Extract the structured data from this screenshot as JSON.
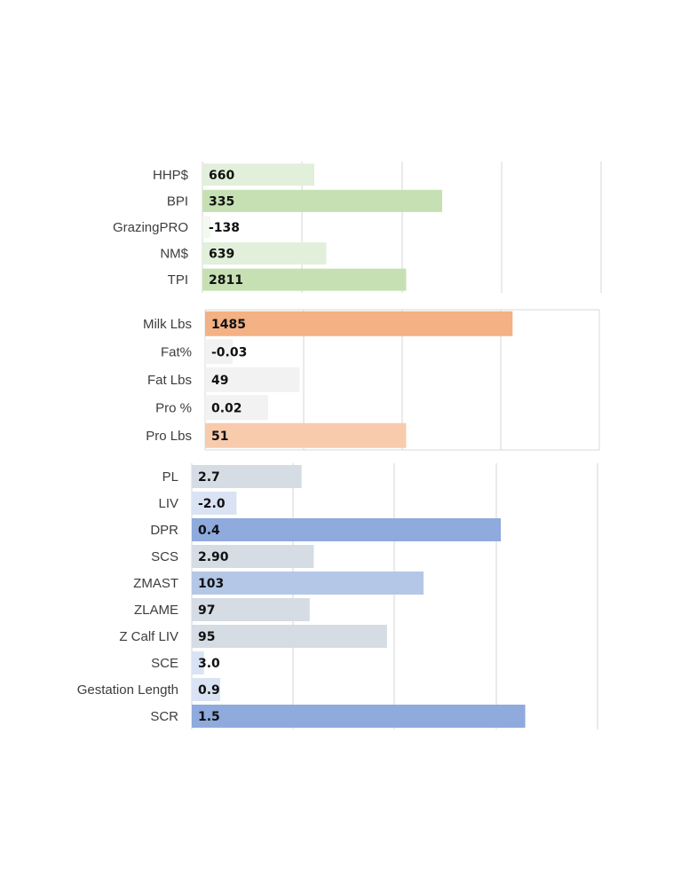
{
  "chart_data": [
    {
      "type": "bar",
      "orientation": "horizontal",
      "categories": [
        "HHP$",
        "BPI",
        "GrazingPRO",
        "NM$",
        "TPI"
      ],
      "values": [
        660,
        335,
        -138,
        639,
        2811
      ],
      "value_labels": [
        "660",
        "335",
        "-138",
        "639",
        "2811"
      ],
      "bar_fill_fraction": [
        0.28,
        0.6,
        0.02,
        0.31,
        0.51
      ],
      "bar_colors": [
        "#e2efda",
        "#c6e0b4",
        "#f2f9ee",
        "#e2efda",
        "#c6e0b4"
      ],
      "grid": true
    },
    {
      "type": "bar",
      "orientation": "horizontal",
      "categories": [
        "Milk Lbs",
        "Fat%",
        "Fat Lbs",
        "Pro %",
        "Pro Lbs"
      ],
      "values": [
        1485,
        -0.03,
        49,
        0.02,
        51
      ],
      "value_labels": [
        "1485",
        "-0.03",
        "49",
        "0.02",
        "51"
      ],
      "bar_fill_fraction": [
        0.78,
        0.07,
        0.24,
        0.16,
        0.51
      ],
      "bar_colors": [
        "#f4b183",
        "#f2f2f2",
        "#f2f2f2",
        "#f2f2f2",
        "#f8cbad"
      ],
      "grid": true
    },
    {
      "type": "bar",
      "orientation": "horizontal",
      "categories": [
        "PL",
        "LIV",
        "DPR",
        "SCS",
        "ZMAST",
        "ZLAME",
        "Z Calf LIV",
        "SCE",
        "Gestation Length",
        "SCR"
      ],
      "values": [
        2.7,
        -2.0,
        0.4,
        2.9,
        103,
        97,
        95,
        3.0,
        0.9,
        1.5
      ],
      "value_labels": [
        "2.7",
        "-2.0",
        "0.4",
        "2.90",
        "103",
        "97",
        "95",
        "3.0",
        "0.9",
        "1.5"
      ],
      "bar_fill_fraction": [
        0.27,
        0.11,
        0.76,
        0.3,
        0.57,
        0.29,
        0.48,
        0.03,
        0.07,
        0.82
      ],
      "bar_colors": [
        "#d6dce4",
        "#dae3f3",
        "#8faadc",
        "#d6dce4",
        "#b4c7e7",
        "#d6dce4",
        "#d6dce4",
        "#dae3f3",
        "#dae3f3",
        "#8faadc"
      ],
      "grid": true
    }
  ]
}
